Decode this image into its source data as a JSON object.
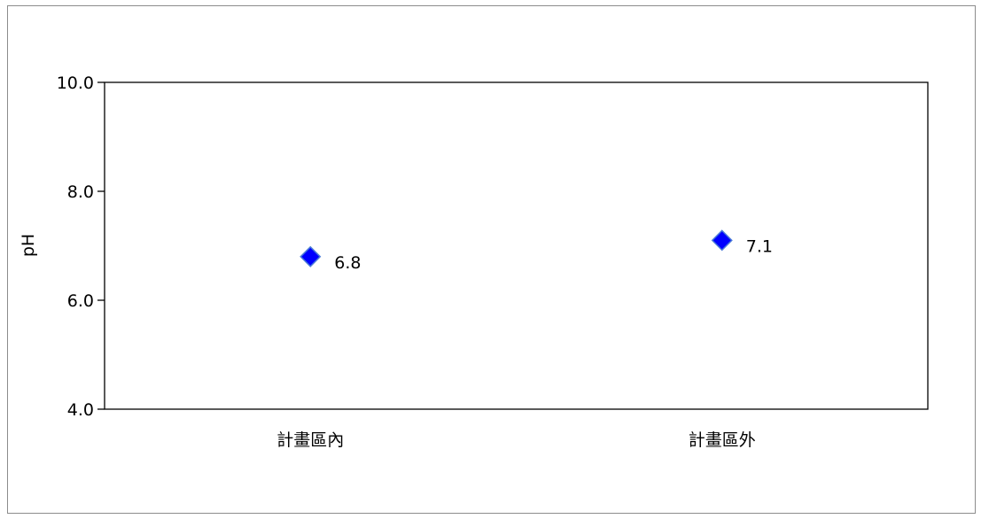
{
  "chart_data": {
    "type": "scatter",
    "title": "",
    "xlabel": "",
    "ylabel": "pH",
    "categories": [
      "計畫區內",
      "計畫區外"
    ],
    "series": [
      {
        "values": [
          6.8,
          7.1
        ]
      }
    ],
    "data_labels": [
      "6.8",
      "7.1"
    ],
    "ylim": [
      4.0,
      10.0
    ],
    "yticks": [
      "4.0",
      "6.0",
      "8.0",
      "10.0"
    ],
    "ytick_values": [
      4.0,
      6.0,
      8.0,
      10.0
    ],
    "grid": false,
    "legend": "none",
    "marker": "diamond",
    "marker_color": "#0000ff",
    "marker_edge_color": "#4a7bd8",
    "frame_color": "#8c8c8c",
    "axis_color": "#000000"
  }
}
